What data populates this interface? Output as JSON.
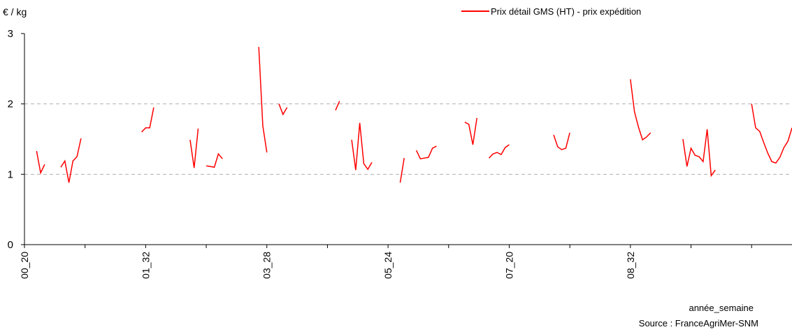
{
  "chart_data": {
    "type": "line",
    "y_label": "€ / kg",
    "x_label": "année_semaine",
    "source": "Source : FranceAgriMer-SNM",
    "ylim": [
      0,
      3
    ],
    "yticks": [
      0,
      1,
      2,
      3
    ],
    "grid": true,
    "legend": "top-right",
    "categories": [
      "00_20",
      null,
      null,
      null,
      null,
      null,
      null,
      null,
      null,
      null,
      null,
      null,
      null,
      null,
      null,
      null,
      null,
      null,
      null,
      null,
      null,
      null,
      null,
      null,
      null,
      null,
      null,
      null,
      null,
      null,
      "01_32",
      null,
      null,
      null,
      null,
      null,
      null,
      null,
      null,
      null,
      null,
      null,
      null,
      null,
      null,
      null,
      null,
      null,
      null,
      null,
      null,
      null,
      null,
      null,
      null,
      null,
      null,
      null,
      null,
      null,
      "03_28",
      null,
      null,
      null,
      null,
      null,
      null,
      null,
      null,
      null,
      null,
      null,
      null,
      null,
      null,
      null,
      null,
      null,
      null,
      null,
      null,
      null,
      null,
      null,
      null,
      null,
      null,
      null,
      null,
      null,
      "05_24",
      null,
      null,
      null,
      null,
      null,
      null,
      null,
      null,
      null,
      null,
      null,
      null,
      null,
      null,
      null,
      null,
      null,
      null,
      null,
      null,
      null,
      null,
      null,
      null,
      null,
      null,
      null,
      null,
      null,
      "07_20",
      null,
      null,
      null,
      null,
      null,
      null,
      null,
      null,
      null,
      null,
      null,
      null,
      null,
      null,
      null,
      null,
      null,
      null,
      null,
      null,
      null,
      null,
      null,
      null,
      null,
      null,
      null,
      null,
      null,
      "08_32",
      null,
      null,
      null,
      null,
      null,
      null,
      null,
      null,
      null,
      null,
      null,
      null,
      null,
      null,
      null,
      null,
      null,
      null,
      null,
      null,
      null,
      null,
      null,
      null,
      null,
      null,
      null,
      null,
      null,
      null,
      null,
      null,
      null,
      null,
      null,
      null,
      null,
      null,
      null,
      null
    ],
    "series": [
      {
        "name": "Prix détail GMS (HT) - prix expédition",
        "color": "#ff0000",
        "values": [
          null,
          null,
          null,
          1.33,
          1.02,
          1.14,
          null,
          null,
          null,
          1.1,
          1.19,
          0.88,
          1.19,
          1.25,
          1.51,
          null,
          null,
          null,
          null,
          null,
          null,
          null,
          null,
          null,
          null,
          null,
          null,
          null,
          null,
          1.6,
          1.66,
          1.66,
          1.95,
          null,
          null,
          null,
          null,
          null,
          null,
          null,
          null,
          1.49,
          1.09,
          1.65,
          null,
          1.12,
          1.11,
          1.1,
          1.29,
          1.22,
          null,
          null,
          null,
          null,
          null,
          null,
          null,
          null,
          2.81,
          1.69,
          1.31,
          null,
          null,
          2.0,
          1.85,
          1.95,
          null,
          null,
          null,
          null,
          null,
          null,
          null,
          null,
          null,
          null,
          null,
          1.91,
          2.04,
          null,
          null,
          1.49,
          1.06,
          1.73,
          1.15,
          1.07,
          1.17,
          null,
          null,
          null,
          null,
          null,
          null,
          0.88,
          1.23,
          null,
          null,
          1.34,
          1.22,
          1.23,
          1.24,
          1.37,
          1.4,
          null,
          null,
          null,
          null,
          null,
          null,
          1.74,
          1.71,
          1.42,
          1.8,
          null,
          null,
          1.23,
          1.29,
          1.31,
          1.28,
          1.38,
          1.42,
          null,
          null,
          null,
          null,
          null,
          null,
          null,
          null,
          null,
          null,
          1.56,
          1.39,
          1.35,
          1.37,
          1.59,
          null,
          null,
          null,
          null,
          null,
          null,
          null,
          null,
          null,
          null,
          null,
          null,
          null,
          null,
          2.35,
          1.89,
          1.67,
          1.49,
          1.53,
          1.59,
          null,
          null,
          null,
          null,
          null,
          null,
          null,
          1.5,
          1.11,
          1.37,
          1.27,
          1.25,
          1.18,
          1.64,
          0.98,
          1.06,
          null,
          null,
          null,
          null,
          null,
          null,
          null,
          null,
          2.0,
          1.66,
          1.61,
          1.45,
          1.3,
          1.18,
          1.16,
          1.24,
          1.38,
          1.47,
          1.66
        ]
      }
    ]
  }
}
